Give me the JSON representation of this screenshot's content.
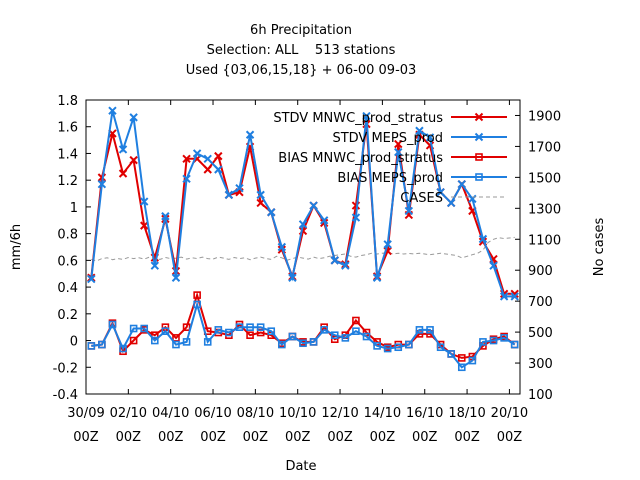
{
  "chart_data": {
    "type": "line",
    "title_lines": [
      "6h Precipitation",
      "Selection: ALL    513 stations",
      "Used {03,06,15,18} + 06-00 09-03"
    ],
    "xlabel": "Date",
    "ylabel": "mm/6h",
    "y2label": "No cases",
    "ylim": [
      -0.4,
      1.8
    ],
    "y2lim": [
      100,
      2000
    ],
    "yticks": [
      "-0.4",
      "-0.2",
      "0",
      "0.2",
      "0.4",
      "0.6",
      "0.8",
      "1",
      "1.2",
      "1.4",
      "1.6",
      "1.8"
    ],
    "y2ticks": [
      "100",
      "300",
      "500",
      "700",
      "900",
      "1100",
      "1300",
      "1500",
      "1700",
      "1900"
    ],
    "xticks": [
      {
        "line1": "30/09",
        "line2": "00Z"
      },
      {
        "line1": "02/10",
        "line2": "00Z"
      },
      {
        "line1": "04/10",
        "line2": "00Z"
      },
      {
        "line1": "06/10",
        "line2": "00Z"
      },
      {
        "line1": "08/10",
        "line2": "00Z"
      },
      {
        "line1": "10/10",
        "line2": "00Z"
      },
      {
        "line1": "12/10",
        "line2": "00Z"
      },
      {
        "line1": "14/10",
        "line2": "00Z"
      },
      {
        "line1": "16/10",
        "line2": "00Z"
      },
      {
        "line1": "18/10",
        "line2": "00Z"
      },
      {
        "line1": "20/10",
        "line2": "00Z"
      }
    ],
    "x_hours": [
      6,
      12,
      18,
      24,
      30,
      36,
      42,
      48,
      54,
      60,
      66,
      72,
      78,
      84,
      90,
      96,
      102,
      108,
      114,
      120,
      126,
      132,
      138,
      144,
      150,
      156,
      162,
      168,
      174,
      180,
      186,
      192,
      198,
      204,
      210,
      216,
      222,
      228,
      234,
      240,
      246,
      252,
      258,
      264,
      270,
      276,
      282,
      288,
      294,
      300,
      306,
      312,
      318,
      324,
      330,
      336,
      342,
      348,
      354,
      360,
      366,
      372,
      378,
      384,
      390,
      396,
      402,
      408,
      414,
      420,
      426,
      432,
      438,
      444,
      450,
      456,
      462,
      468,
      474,
      480,
      486
    ],
    "legend_position": "top-right",
    "series": [
      {
        "name": "STDV MNWC_prod_stratus",
        "color": "#e00000",
        "marker": "x",
        "x_hours": [
          6,
          18,
          30,
          42,
          54,
          66,
          78,
          90,
          102,
          114,
          126,
          138,
          150,
          162,
          174,
          186,
          198,
          210,
          222,
          234,
          246,
          258,
          270,
          282,
          294,
          306,
          318,
          330,
          342,
          354,
          366,
          378,
          390,
          402,
          414,
          426,
          438,
          450,
          462,
          474,
          486
        ],
        "values": [
          0.47,
          1.22,
          1.55,
          1.25,
          1.35,
          0.86,
          0.62,
          0.91,
          0.52,
          1.36,
          1.36,
          1.28,
          1.38,
          1.09,
          1.11,
          1.45,
          1.03,
          0.96,
          0.68,
          0.48,
          0.82,
          1.01,
          0.88,
          0.6,
          0.57,
          1.01,
          1.62,
          0.48,
          0.67,
          1.47,
          0.94,
          1.54,
          1.46,
          1.11,
          1.03,
          1.17,
          0.97,
          0.74,
          0.61,
          0.35,
          0.35
        ]
      },
      {
        "name": "STDV MEPS_prod",
        "color": "#1f7fe0",
        "marker": "x",
        "x_hours": [
          6,
          18,
          30,
          42,
          54,
          66,
          78,
          90,
          102,
          114,
          126,
          138,
          150,
          162,
          174,
          186,
          198,
          210,
          222,
          234,
          246,
          258,
          270,
          282,
          294,
          306,
          318,
          330,
          342,
          354,
          366,
          378,
          390,
          402,
          414,
          426,
          438,
          450,
          462,
          474,
          486
        ],
        "values": [
          0.46,
          1.17,
          1.72,
          1.43,
          1.67,
          1.04,
          0.56,
          0.93,
          0.47,
          1.21,
          1.4,
          1.36,
          1.28,
          1.09,
          1.14,
          1.54,
          1.09,
          0.96,
          0.7,
          0.47,
          0.87,
          1.01,
          0.9,
          0.6,
          0.56,
          0.92,
          1.68,
          0.47,
          0.72,
          1.41,
          0.97,
          1.57,
          1.52,
          1.11,
          1.03,
          1.17,
          1.06,
          0.76,
          0.56,
          0.33,
          0.33
        ]
      },
      {
        "name": "BIAS MNWC_prod_stratus",
        "color": "#e00000",
        "marker": "square",
        "x_hours": [
          6,
          18,
          30,
          42,
          54,
          66,
          78,
          90,
          102,
          114,
          126,
          138,
          150,
          162,
          174,
          186,
          198,
          210,
          222,
          234,
          246,
          258,
          270,
          282,
          294,
          306,
          318,
          330,
          342,
          354,
          366,
          378,
          390,
          402,
          414,
          426,
          438,
          450,
          462,
          474,
          486
        ],
        "values": [
          -0.04,
          -0.03,
          0.13,
          -0.08,
          0.0,
          0.08,
          0.04,
          0.1,
          0.02,
          0.1,
          0.34,
          0.07,
          0.06,
          0.04,
          0.12,
          0.04,
          0.06,
          0.04,
          -0.02,
          0.03,
          -0.01,
          -0.01,
          0.1,
          0.01,
          0.04,
          0.15,
          0.06,
          -0.01,
          -0.05,
          -0.03,
          -0.03,
          0.05,
          0.05,
          -0.03,
          -0.1,
          -0.13,
          -0.12,
          -0.04,
          0.01,
          0.03,
          -0.03
        ]
      },
      {
        "name": "BIAS MEPS_prod",
        "color": "#1f7fe0",
        "marker": "square",
        "x_hours": [
          6,
          18,
          30,
          42,
          54,
          66,
          78,
          90,
          102,
          114,
          126,
          138,
          150,
          162,
          174,
          186,
          198,
          210,
          222,
          234,
          246,
          258,
          270,
          282,
          294,
          306,
          318,
          330,
          342,
          354,
          366,
          378,
          390,
          402,
          414,
          426,
          438,
          450,
          462,
          474,
          486
        ],
        "values": [
          -0.04,
          -0.03,
          0.12,
          -0.06,
          0.09,
          0.09,
          0.0,
          0.07,
          -0.03,
          -0.01,
          0.27,
          -0.01,
          0.08,
          0.06,
          0.1,
          0.1,
          0.1,
          0.07,
          -0.03,
          0.03,
          -0.02,
          -0.01,
          0.08,
          0.04,
          0.02,
          0.07,
          0.03,
          -0.04,
          -0.06,
          -0.05,
          -0.03,
          0.08,
          0.08,
          -0.05,
          -0.1,
          -0.2,
          -0.15,
          -0.01,
          0.0,
          0.02,
          -0.03
        ]
      },
      {
        "name": "CASES",
        "color": "#999999",
        "marker": "none",
        "dashed": true,
        "axis": "y2",
        "x_hours": [
          6,
          12,
          18,
          24,
          30,
          36,
          42,
          48,
          54,
          60,
          66,
          72,
          78,
          84,
          90,
          96,
          102,
          108,
          114,
          120,
          126,
          132,
          138,
          144,
          150,
          156,
          162,
          168,
          174,
          180,
          186,
          192,
          198,
          204,
          210,
          216,
          222,
          228,
          234,
          240,
          246,
          252,
          258,
          264,
          270,
          276,
          282,
          288,
          294,
          300,
          306,
          312,
          318,
          324,
          330,
          336,
          342,
          348,
          354,
          360,
          366,
          372,
          378,
          384,
          390,
          396,
          402,
          408,
          414,
          420,
          426,
          432,
          438,
          444,
          450,
          456,
          462,
          468,
          474,
          480,
          486
        ],
        "values": [
          970,
          960,
          975,
          980,
          968,
          975,
          970,
          982,
          975,
          980,
          972,
          985,
          975,
          970,
          982,
          975,
          978,
          985,
          972,
          980,
          976,
          985,
          975,
          972,
          985,
          978,
          970,
          982,
          975,
          980,
          968,
          978,
          985,
          975,
          970,
          990,
          980,
          965,
          975,
          985,
          978,
          972,
          985,
          975,
          980,
          990,
          995,
          1000,
          1005,
          990,
          985,
          995,
          1000,
          1010,
          1005,
          1010,
          1015,
          1005,
          1010,
          1005,
          1008,
          1005,
          1010,
          1005,
          1000,
          1005,
          1010,
          1005,
          1000,
          995,
          980,
          990,
          1000,
          1010,
          1030,
          1080,
          1100,
          1110,
          1105,
          1108,
          1112
        ]
      }
    ]
  }
}
